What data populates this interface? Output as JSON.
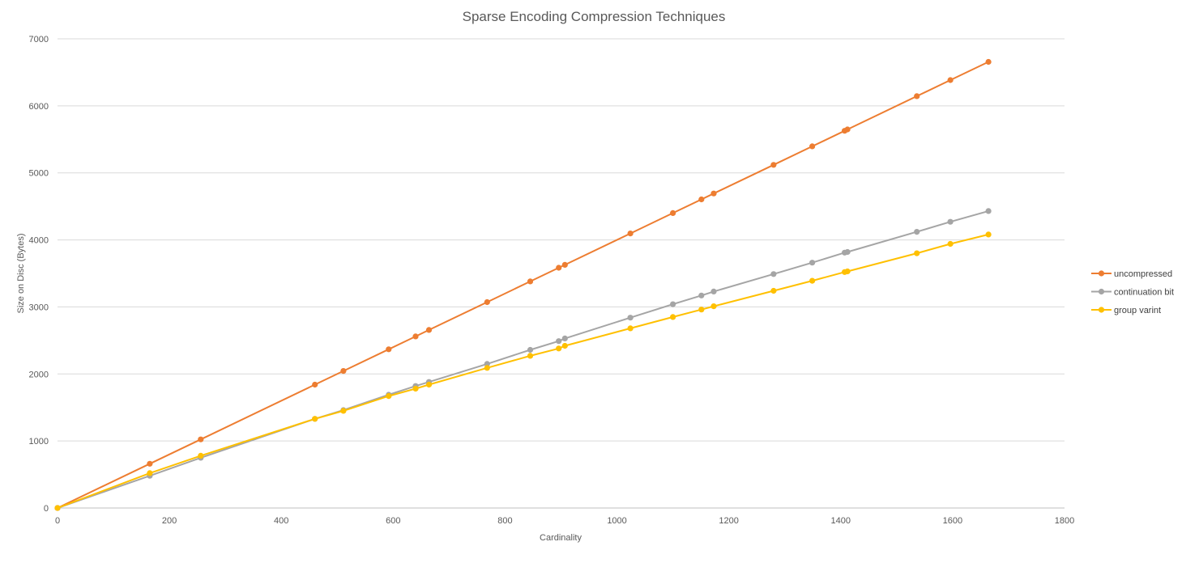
{
  "chart_data": {
    "type": "line",
    "title": "Sparse Encoding Compression Techniques",
    "xlabel": "Cardinality",
    "ylabel": "Size on Disc (Bytes)",
    "xlim": [
      0,
      1800
    ],
    "ylim": [
      0,
      7000
    ],
    "x_ticks": [
      0,
      200,
      400,
      600,
      800,
      1000,
      1200,
      1400,
      1600,
      1800
    ],
    "y_ticks": [
      0,
      1000,
      2000,
      3000,
      4000,
      5000,
      6000,
      7000
    ],
    "x_tick_labels": [
      "0",
      "200",
      "400",
      "600",
      "800",
      "1000",
      "1200",
      "1400",
      "1600",
      "1800"
    ],
    "y_tick_labels": [
      "0",
      "1000",
      "2000",
      "3000",
      "4000",
      "5000",
      "6000",
      "7000"
    ],
    "grid": "horizontal",
    "legend_position": "right",
    "series": [
      {
        "name": "uncompressed",
        "color": "#ed7d31",
        "points": [
          [
            0,
            0
          ],
          [
            165,
            660
          ],
          [
            256,
            1024
          ],
          [
            460,
            1840
          ],
          [
            511,
            2044
          ],
          [
            592,
            2368
          ],
          [
            640,
            2560
          ],
          [
            664,
            2656
          ],
          [
            768,
            3072
          ],
          [
            845,
            3380
          ],
          [
            896,
            3584
          ],
          [
            907,
            3628
          ],
          [
            1024,
            4096
          ],
          [
            1100,
            4400
          ],
          [
            1151,
            4604
          ],
          [
            1173,
            4692
          ],
          [
            1280,
            5120
          ],
          [
            1349,
            5396
          ],
          [
            1407,
            5628
          ],
          [
            1412,
            5648
          ],
          [
            1536,
            6144
          ],
          [
            1596,
            6384
          ],
          [
            1664,
            6656
          ]
        ]
      },
      {
        "name": "continuation bit",
        "color": "#a5a5a5",
        "points": [
          [
            0,
            0
          ],
          [
            165,
            480
          ],
          [
            256,
            750
          ],
          [
            460,
            1330
          ],
          [
            511,
            1460
          ],
          [
            592,
            1690
          ],
          [
            640,
            1820
          ],
          [
            664,
            1880
          ],
          [
            768,
            2150
          ],
          [
            845,
            2360
          ],
          [
            896,
            2490
          ],
          [
            907,
            2530
          ],
          [
            1024,
            2840
          ],
          [
            1100,
            3040
          ],
          [
            1151,
            3170
          ],
          [
            1173,
            3230
          ],
          [
            1280,
            3490
          ],
          [
            1349,
            3660
          ],
          [
            1407,
            3810
          ],
          [
            1412,
            3820
          ],
          [
            1536,
            4120
          ],
          [
            1596,
            4270
          ],
          [
            1664,
            4430
          ]
        ]
      },
      {
        "name": "group varint",
        "color": "#ffc000",
        "points": [
          [
            0,
            0
          ],
          [
            165,
            520
          ],
          [
            256,
            780
          ],
          [
            460,
            1330
          ],
          [
            511,
            1450
          ],
          [
            592,
            1670
          ],
          [
            640,
            1780
          ],
          [
            664,
            1840
          ],
          [
            768,
            2090
          ],
          [
            845,
            2270
          ],
          [
            896,
            2380
          ],
          [
            907,
            2420
          ],
          [
            1024,
            2680
          ],
          [
            1100,
            2850
          ],
          [
            1151,
            2960
          ],
          [
            1173,
            3010
          ],
          [
            1280,
            3240
          ],
          [
            1349,
            3390
          ],
          [
            1407,
            3520
          ],
          [
            1412,
            3530
          ],
          [
            1536,
            3800
          ],
          [
            1596,
            3940
          ],
          [
            1664,
            4080
          ]
        ]
      }
    ]
  }
}
